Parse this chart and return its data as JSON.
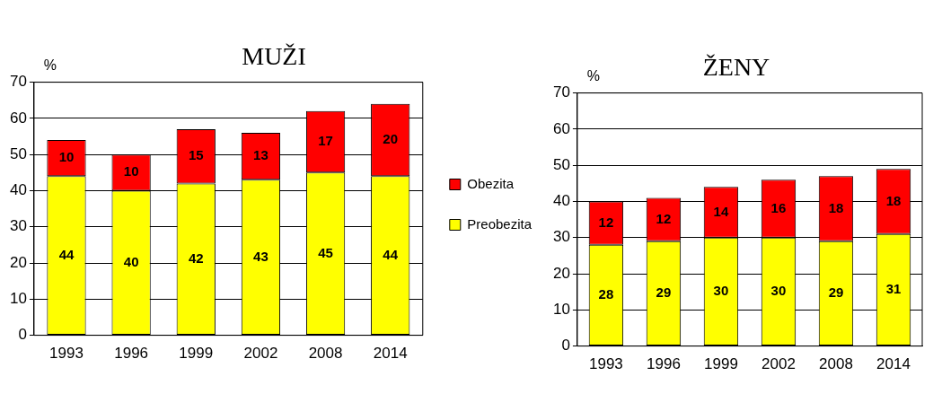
{
  "chart_data": [
    {
      "type": "bar",
      "title": "MUŽI",
      "ylabel": "%",
      "categories": [
        "1993",
        "1996",
        "1999",
        "2002",
        "2008",
        "2014"
      ],
      "stacked": true,
      "ylim": [
        0,
        70
      ],
      "yticks": [
        0,
        10,
        20,
        30,
        40,
        50,
        60,
        70
      ],
      "grid": "y",
      "data_labels": true,
      "legend": "right",
      "series": [
        {
          "name": "Preobezita",
          "color": "#ffff00",
          "values": [
            44,
            40,
            42,
            43,
            45,
            44
          ]
        },
        {
          "name": "Obezita",
          "color": "#ff0000",
          "values": [
            10,
            10,
            15,
            13,
            17,
            20
          ]
        }
      ]
    },
    {
      "type": "bar",
      "title": "ŽENY",
      "ylabel": "%",
      "categories": [
        "1993",
        "1996",
        "1999",
        "2002",
        "2008",
        "2014"
      ],
      "stacked": true,
      "ylim": [
        0,
        70
      ],
      "yticks": [
        0,
        10,
        20,
        30,
        40,
        50,
        60,
        70
      ],
      "grid": "y",
      "data_labels": true,
      "series": [
        {
          "color": "#ffff00",
          "values": [
            28,
            29,
            30,
            30,
            29,
            31
          ]
        },
        {
          "color": "#ff0000",
          "values": [
            12,
            12,
            14,
            16,
            18,
            18
          ]
        }
      ]
    }
  ]
}
